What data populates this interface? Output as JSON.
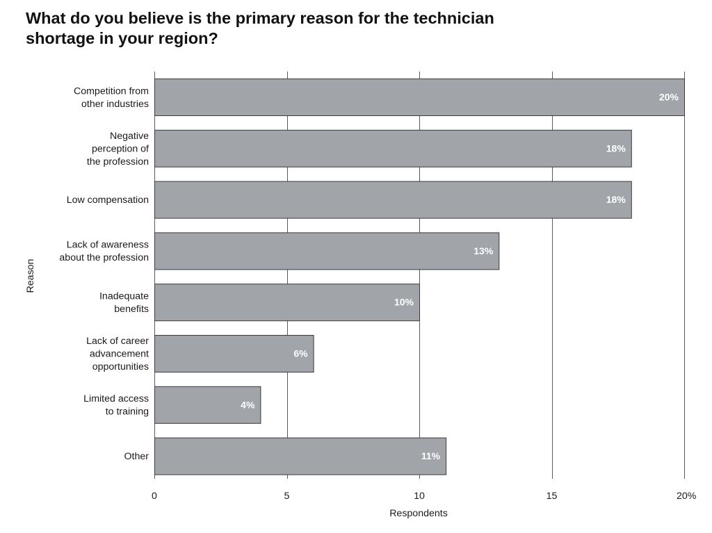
{
  "chart_data": {
    "type": "bar",
    "orientation": "horizontal",
    "title": "What do you believe is the primary reason for the technician shortage in your region?",
    "xlabel": "Respondents",
    "ylabel": "Reason",
    "categories": [
      [
        "Competition from",
        "other industries"
      ],
      [
        "Negative",
        "perception of",
        "the profession"
      ],
      [
        "Low compensation"
      ],
      [
        "Lack of awareness",
        "about the profession"
      ],
      [
        "Inadequate",
        "benefits"
      ],
      [
        "Lack of career",
        "advancement",
        "opportunities"
      ],
      [
        "Limited access",
        "to training"
      ],
      [
        "Other"
      ]
    ],
    "values": [
      20,
      18,
      18,
      13,
      10,
      6,
      4,
      11
    ],
    "data_labels": [
      "20%",
      "18%",
      "18%",
      "13%",
      "10%",
      "6%",
      "4%",
      "11%"
    ],
    "xlim": [
      0,
      20
    ],
    "xticks": [
      0,
      5,
      10,
      15,
      20
    ],
    "xtick_labels": [
      "0",
      "5",
      "10",
      "15",
      "20%"
    ],
    "grid": true,
    "legend": "none",
    "bar_color": "#a1a4a9"
  }
}
